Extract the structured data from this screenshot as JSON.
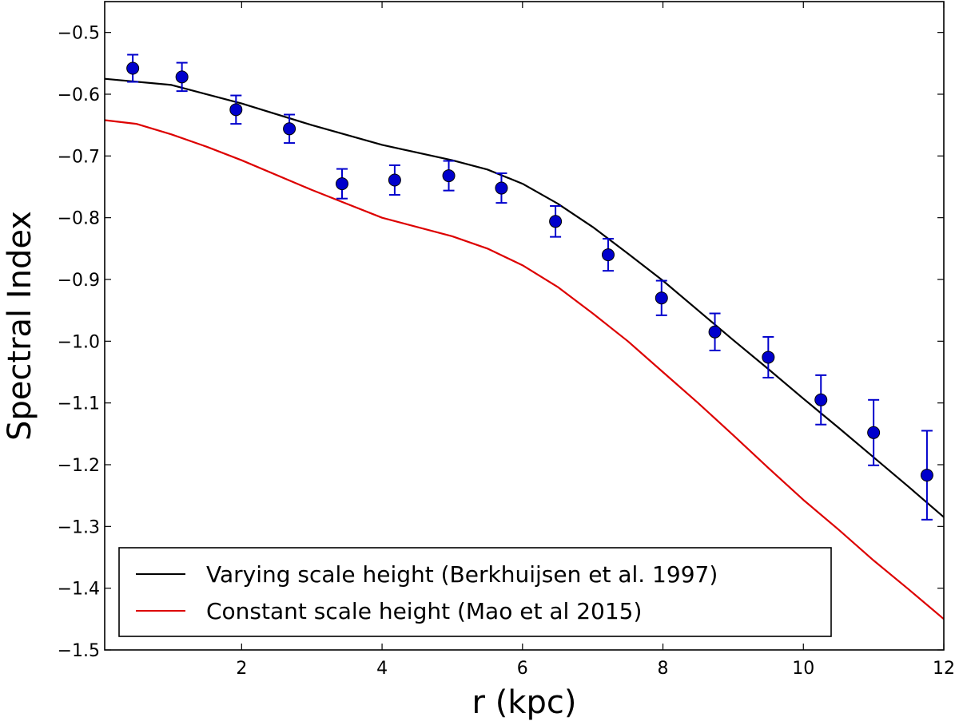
{
  "chart_data": {
    "type": "line",
    "title": "",
    "xlabel": "r (kpc)",
    "ylabel": "Spectral Index",
    "xlim": [
      0.05,
      12
    ],
    "ylim": [
      -1.5,
      -0.45
    ],
    "xticks": [
      2,
      4,
      6,
      8,
      10,
      12
    ],
    "xtick_labels": [
      "2",
      "4",
      "6",
      "8",
      "10",
      "12"
    ],
    "yticks": [
      -0.5,
      -0.6,
      -0.7,
      -0.8,
      -0.9,
      -1.0,
      -1.1,
      -1.2,
      -1.3,
      -1.4,
      -1.5
    ],
    "ytick_labels": [
      "−0.5",
      "−0.6",
      "−0.7",
      "−0.8",
      "−0.9",
      "−1.0",
      "−1.1",
      "−1.2",
      "−1.3",
      "−1.4",
      "−1.5"
    ],
    "grid": false,
    "legend_position": "bottom-left",
    "series": [
      {
        "name": "Varying scale height (Berkhuijsen et al. 1997)",
        "color": "#000000",
        "kind": "line",
        "x": [
          0.05,
          1,
          2,
          3,
          4,
          5,
          5.5,
          6,
          6.5,
          7,
          7.5,
          8,
          8.5,
          9,
          9.5,
          10,
          10.5,
          11,
          11.5,
          12
        ],
        "y": [
          -0.575,
          -0.585,
          -0.615,
          -0.65,
          -0.682,
          -0.707,
          -0.722,
          -0.745,
          -0.777,
          -0.815,
          -0.858,
          -0.902,
          -0.95,
          -0.998,
          -1.045,
          -1.093,
          -1.14,
          -1.188,
          -1.236,
          -1.285
        ]
      },
      {
        "name": "Constant scale height (Mao et al 2015)",
        "color": "#dd0000",
        "kind": "line",
        "x": [
          0.05,
          0.5,
          1,
          1.5,
          2,
          3,
          4,
          5,
          5.5,
          6,
          6.5,
          7,
          7.5,
          8,
          8.5,
          9,
          9.5,
          10,
          10.5,
          11,
          11.5,
          12
        ],
        "y": [
          -0.642,
          -0.648,
          -0.665,
          -0.685,
          -0.707,
          -0.755,
          -0.8,
          -0.83,
          -0.85,
          -0.877,
          -0.912,
          -0.955,
          -1.0,
          -1.05,
          -1.1,
          -1.152,
          -1.205,
          -1.257,
          -1.305,
          -1.355,
          -1.402,
          -1.45
        ]
      },
      {
        "name": "Data",
        "color": "#0000cc",
        "kind": "errorbar",
        "x": [
          0.45,
          1.15,
          1.92,
          2.68,
          3.43,
          4.18,
          4.95,
          5.7,
          6.47,
          7.22,
          7.98,
          8.74,
          9.5,
          10.25,
          11.0,
          11.76
        ],
        "y": [
          -0.558,
          -0.572,
          -0.625,
          -0.656,
          -0.745,
          -0.739,
          -0.732,
          -0.752,
          -0.806,
          -0.86,
          -0.93,
          -0.985,
          -1.026,
          -1.095,
          -1.148,
          -1.217
        ],
        "yerr": [
          0.022,
          0.023,
          0.023,
          0.023,
          0.024,
          0.024,
          0.024,
          0.024,
          0.025,
          0.026,
          0.028,
          0.03,
          0.033,
          0.04,
          0.053,
          0.072
        ]
      }
    ],
    "legend": [
      {
        "label": "Varying scale height (Berkhuijsen et al. 1997)",
        "color": "#000000"
      },
      {
        "label": "Constant scale height (Mao et al 2015)",
        "color": "#dd0000"
      }
    ]
  }
}
